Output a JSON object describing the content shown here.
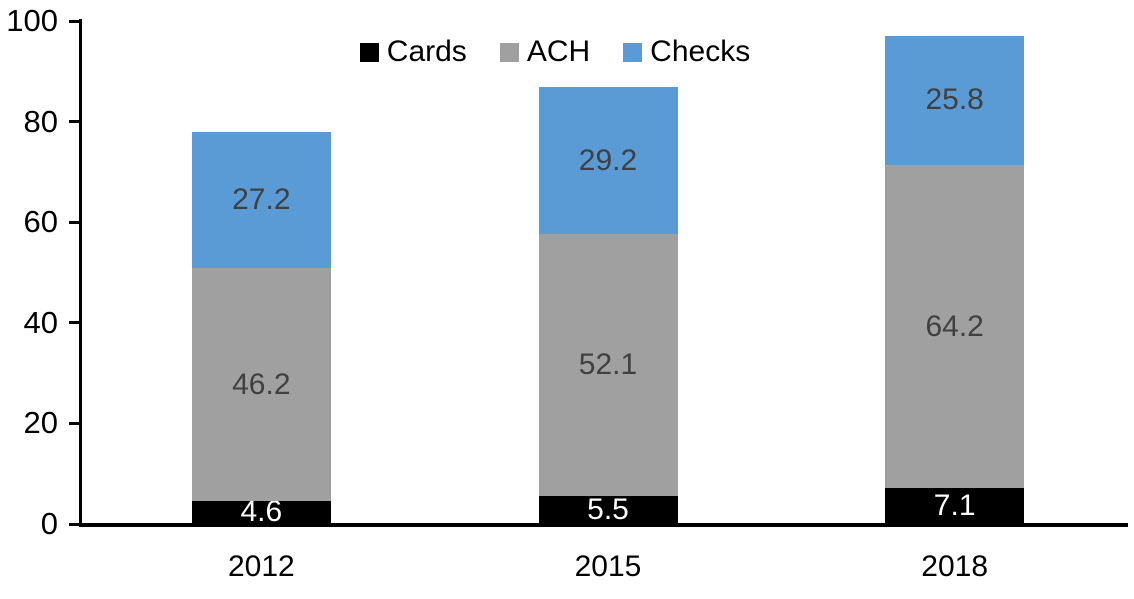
{
  "chart_data": {
    "type": "bar",
    "stacked": true,
    "title": "",
    "xlabel": "",
    "ylabel": "",
    "categories": [
      "2012",
      "2015",
      "2018"
    ],
    "series": [
      {
        "name": "Cards",
        "color": "#000000",
        "label_color": "#ffffff",
        "values": [
          4.6,
          5.5,
          7.1
        ]
      },
      {
        "name": "ACH",
        "color": "#a0a0a0",
        "label_color": "#404040",
        "values": [
          46.2,
          52.1,
          64.2
        ]
      },
      {
        "name": "Checks",
        "color": "#5b9bd5",
        "label_color": "#404040",
        "values": [
          27.2,
          29.2,
          25.8
        ]
      }
    ],
    "ylim": [
      0,
      100
    ],
    "yticks": [
      0,
      20,
      40,
      60,
      80,
      100
    ],
    "legend_position": "top-center",
    "grid": false,
    "axis_color": "#000000",
    "background_color": "#ffffff"
  }
}
